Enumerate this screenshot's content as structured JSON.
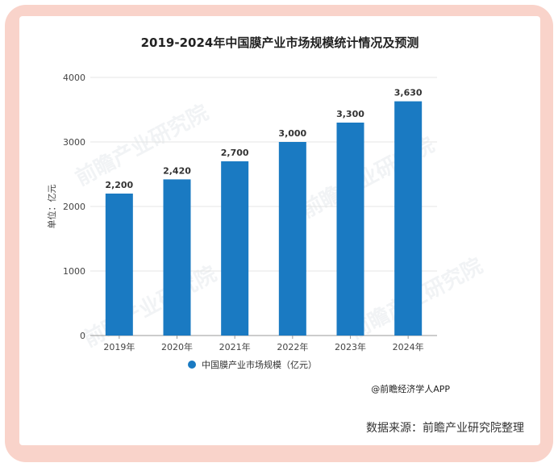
{
  "watermark": "前瞻产业研究院",
  "footer": {
    "credit": "@前瞻经济学人APP",
    "source": "数据来源：前瞻产业研究院整理"
  },
  "chart_data": {
    "type": "bar",
    "title": "2019-2024年中国膜产业市场规模统计情况及预测",
    "ylabel": "单位：亿元",
    "xlabel": "",
    "categories": [
      "2019年",
      "2020年",
      "2021年",
      "2022年",
      "2023年",
      "2024年"
    ],
    "series": [
      {
        "name": "中国膜产业市场规模（亿元）",
        "values": [
          2200,
          2420,
          2700,
          3000,
          3300,
          3630
        ]
      }
    ],
    "data_labels": [
      "2,200",
      "2,420",
      "2,700",
      "3,000",
      "3,300",
      "3,630"
    ],
    "yticks": [
      0,
      1000,
      2000,
      3000,
      4000
    ],
    "ylim": [
      0,
      4000
    ],
    "grid": true,
    "legend_position": "bottom",
    "colors": {
      "bar": "#1a7ac2",
      "grid": "#e4e4e4",
      "axis": "#999999"
    }
  }
}
